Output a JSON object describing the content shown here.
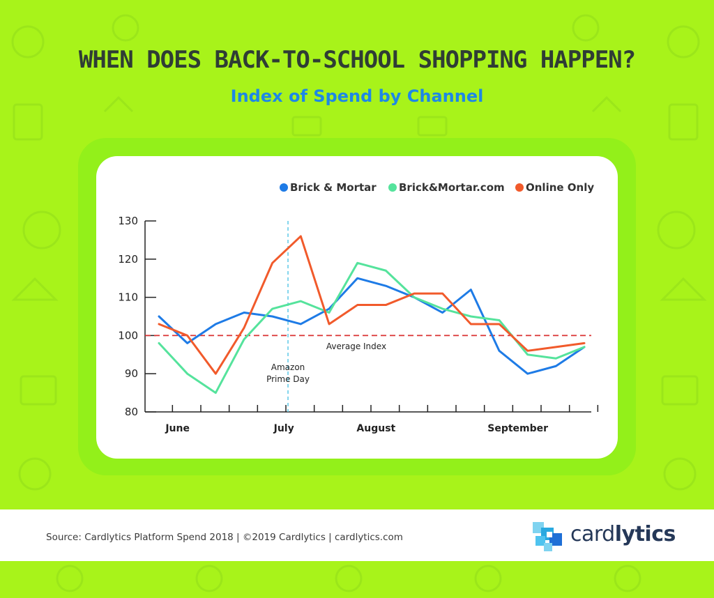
{
  "header": {
    "title": "WHEN DOES BACK-TO-SCHOOL SHOPPING HAPPEN?",
    "subtitle": "Index of Spend by Channel"
  },
  "footer": {
    "source": "Source: Cardlytics Platform Spend 2018 | ©2019 Cardlytics | cardlytics.com",
    "logo_text_light": "card",
    "logo_text_bold": "lytics"
  },
  "colors": {
    "background": "#a8f31a",
    "title": "#2f3d35",
    "subtitle": "#1e88e5",
    "brick_mortar": "#1e7be6",
    "brick_mortar_com": "#55e39c",
    "online_only": "#f15a2b",
    "average_line": "#d93030",
    "prime_day_line": "#5cc8e8"
  },
  "chart_data": {
    "type": "line",
    "ylim": [
      80,
      130
    ],
    "yticks": [
      80,
      90,
      100,
      110,
      120,
      130
    ],
    "x_count": 16,
    "month_labels": [
      {
        "label": "June",
        "x": 1
      },
      {
        "label": "July",
        "x": 4.75
      },
      {
        "label": "August",
        "x": 8
      },
      {
        "label": "September",
        "x": 13
      }
    ],
    "legend_position": "top-right",
    "grid": false,
    "series": [
      {
        "name": "Brick & Mortar",
        "color": "#1e7be6",
        "values": [
          105,
          98,
          103,
          106,
          105,
          103,
          107,
          115,
          113,
          110,
          106,
          112,
          96,
          90,
          92,
          97
        ]
      },
      {
        "name": "Brick&Mortar.com",
        "color": "#55e39c",
        "values": [
          98,
          90,
          85,
          99,
          107,
          109,
          106,
          119,
          117,
          110,
          107,
          105,
          104,
          95,
          94,
          97
        ]
      },
      {
        "name": "Online Only",
        "color": "#f15a2b",
        "values": [
          103,
          100,
          90,
          102,
          119,
          126,
          103,
          108,
          108,
          111,
          111,
          103,
          103,
          96,
          97,
          98
        ]
      }
    ],
    "reference_line": {
      "value": 100,
      "label": "Average Index"
    },
    "annotation": {
      "x": 4.55,
      "label_line1": "Amazon",
      "label_line2": "Prime Day"
    }
  }
}
